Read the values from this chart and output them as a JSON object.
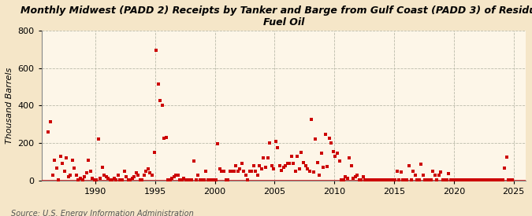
{
  "title": "Monthly Midwest (PADD 2) Receipts by Tanker and Barge from Gulf Coast (PADD 3) of Residual\nFuel Oil",
  "ylabel": "Thousand Barrels",
  "source": "Source: U.S. Energy Information Administration",
  "xlim": [
    1985.5,
    2026
  ],
  "ylim": [
    0,
    800
  ],
  "yticks": [
    0,
    200,
    400,
    600,
    800
  ],
  "xticks": [
    1990,
    1995,
    2000,
    2005,
    2010,
    2015,
    2020,
    2025
  ],
  "background_color": "#f5e6c8",
  "plot_bg_color": "#fdf6e8",
  "scatter_color": "#cc0000",
  "marker_size": 5,
  "data_x": [
    1986.08,
    1986.25,
    1986.42,
    1986.58,
    1986.75,
    1986.92,
    1987.08,
    1987.25,
    1987.42,
    1987.58,
    1987.75,
    1987.92,
    1988.08,
    1988.25,
    1988.42,
    1988.58,
    1988.75,
    1988.92,
    1989.08,
    1989.25,
    1989.42,
    1989.58,
    1989.75,
    1989.92,
    1990.08,
    1990.25,
    1990.42,
    1990.58,
    1990.75,
    1990.92,
    1991.08,
    1991.25,
    1991.42,
    1991.58,
    1991.75,
    1991.92,
    1992.08,
    1992.25,
    1992.42,
    1992.58,
    1992.75,
    1992.92,
    1993.08,
    1993.25,
    1993.42,
    1993.58,
    1993.75,
    1993.92,
    1994.08,
    1994.25,
    1994.42,
    1994.58,
    1994.75,
    1994.92,
    1995.08,
    1995.25,
    1995.42,
    1995.58,
    1995.75,
    1995.92,
    1996.08,
    1996.25,
    1996.42,
    1996.58,
    1996.75,
    1996.92,
    1997.08,
    1997.25,
    1997.42,
    1997.58,
    1997.75,
    1997.92,
    1998.08,
    1998.25,
    1998.42,
    1998.58,
    1998.75,
    1998.92,
    1999.08,
    1999.25,
    1999.42,
    1999.58,
    1999.75,
    1999.92,
    2000.08,
    2000.25,
    2000.42,
    2000.58,
    2000.75,
    2000.92,
    2001.08,
    2001.25,
    2001.42,
    2001.58,
    2001.75,
    2001.92,
    2002.08,
    2002.25,
    2002.42,
    2002.58,
    2002.75,
    2002.92,
    2003.08,
    2003.25,
    2003.42,
    2003.58,
    2003.75,
    2003.92,
    2004.08,
    2004.25,
    2004.42,
    2004.58,
    2004.75,
    2004.92,
    2005.08,
    2005.25,
    2005.42,
    2005.58,
    2005.75,
    2005.92,
    2006.08,
    2006.25,
    2006.42,
    2006.58,
    2006.75,
    2006.92,
    2007.08,
    2007.25,
    2007.42,
    2007.58,
    2007.75,
    2007.92,
    2008.08,
    2008.25,
    2008.42,
    2008.58,
    2008.75,
    2008.92,
    2009.08,
    2009.25,
    2009.42,
    2009.58,
    2009.75,
    2009.92,
    2010.08,
    2010.25,
    2010.42,
    2010.58,
    2010.75,
    2010.92,
    2011.08,
    2011.25,
    2011.42,
    2011.58,
    2011.75,
    2011.92,
    2012.08,
    2012.25,
    2012.42,
    2012.58,
    2012.75,
    2012.92,
    2013.08,
    2013.25,
    2013.42,
    2013.58,
    2013.75,
    2013.92,
    2014.08,
    2014.25,
    2014.42,
    2014.58,
    2014.75,
    2014.92,
    2015.08,
    2015.25,
    2015.42,
    2015.58,
    2015.75,
    2015.92,
    2016.08,
    2016.25,
    2016.42,
    2016.58,
    2016.75,
    2016.92,
    2017.08,
    2017.25,
    2017.42,
    2017.58,
    2017.75,
    2017.92,
    2018.08,
    2018.25,
    2018.42,
    2018.58,
    2018.75,
    2018.92,
    2019.08,
    2019.25,
    2019.42,
    2019.58,
    2019.75,
    2019.92,
    2020.08,
    2020.25,
    2020.42,
    2020.58,
    2020.75,
    2020.92,
    2021.08,
    2021.25,
    2021.42,
    2021.58,
    2021.75,
    2021.92,
    2022.08,
    2022.25,
    2022.42,
    2022.58,
    2022.75,
    2022.92,
    2023.08,
    2023.25,
    2023.42,
    2023.58,
    2023.75,
    2023.92,
    2024.08,
    2024.25,
    2024.42,
    2024.58,
    2024.75,
    2024.92
  ],
  "data_y": [
    260,
    315,
    30,
    110,
    65,
    5,
    130,
    90,
    50,
    120,
    20,
    30,
    110,
    65,
    30,
    5,
    10,
    5,
    20,
    40,
    110,
    50,
    10,
    5,
    5,
    220,
    10,
    70,
    30,
    20,
    10,
    5,
    5,
    10,
    5,
    30,
    5,
    5,
    50,
    20,
    5,
    5,
    10,
    20,
    40,
    30,
    5,
    5,
    30,
    50,
    60,
    40,
    30,
    150,
    695,
    515,
    425,
    400,
    225,
    230,
    5,
    5,
    10,
    20,
    30,
    30,
    5,
    5,
    10,
    5,
    5,
    5,
    5,
    105,
    5,
    30,
    5,
    5,
    5,
    50,
    5,
    5,
    5,
    5,
    5,
    195,
    60,
    50,
    50,
    5,
    5,
    50,
    50,
    50,
    80,
    50,
    60,
    90,
    50,
    30,
    5,
    50,
    50,
    80,
    50,
    30,
    80,
    60,
    120,
    70,
    120,
    200,
    80,
    60,
    210,
    175,
    80,
    55,
    70,
    80,
    90,
    90,
    130,
    90,
    50,
    130,
    60,
    150,
    95,
    80,
    60,
    50,
    325,
    45,
    220,
    95,
    30,
    145,
    70,
    245,
    75,
    225,
    200,
    155,
    130,
    145,
    105,
    5,
    5,
    20,
    10,
    120,
    80,
    10,
    20,
    30,
    5,
    5,
    20,
    5,
    5,
    5,
    5,
    5,
    5,
    5,
    5,
    5,
    5,
    5,
    5,
    5,
    5,
    5,
    5,
    50,
    5,
    45,
    5,
    5,
    5,
    80,
    5,
    50,
    30,
    5,
    5,
    85,
    30,
    5,
    5,
    5,
    5,
    50,
    30,
    5,
    30,
    45,
    5,
    5,
    5,
    35,
    5,
    5,
    5,
    5,
    5,
    5,
    5,
    5,
    5,
    5,
    5,
    5,
    5,
    5,
    5,
    5,
    5,
    5,
    5,
    5,
    5,
    5,
    5,
    5,
    5,
    5,
    5,
    65,
    125,
    5,
    5,
    5
  ]
}
